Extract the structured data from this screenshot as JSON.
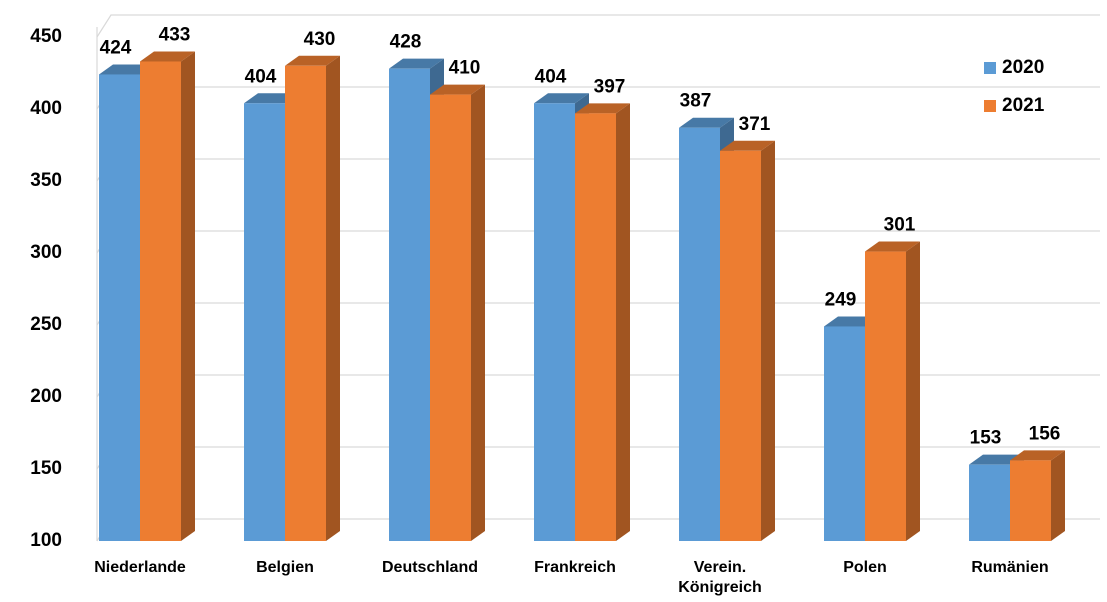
{
  "chart_data": {
    "type": "bar3d",
    "categories": [
      "Niederlande",
      "Belgien",
      "Deutschland",
      "Frankreich",
      "Verein.\nKönigreich",
      "Polen",
      "Rumänien"
    ],
    "series": [
      {
        "name": "2020",
        "color": "#5b9bd5",
        "values": [
          424,
          404,
          428,
          404,
          387,
          249,
          153
        ]
      },
      {
        "name": "2021",
        "color": "#ed7d31",
        "values": [
          433,
          430,
          410,
          397,
          371,
          301,
          156
        ]
      }
    ],
    "ylim": [
      100,
      450
    ],
    "yticks": [
      100,
      150,
      200,
      250,
      300,
      350,
      400,
      450
    ],
    "grid": true,
    "legend": "right"
  }
}
